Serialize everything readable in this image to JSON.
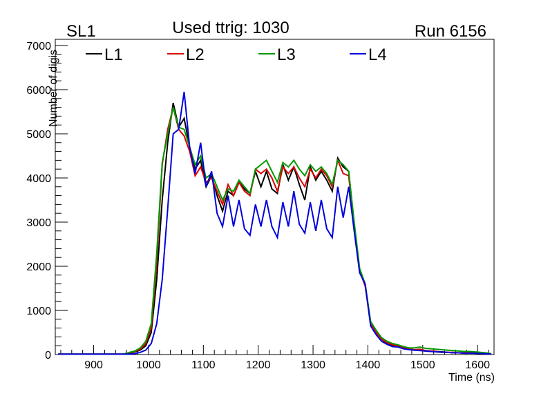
{
  "chart_data": {
    "type": "line",
    "title": "Used ttrig: 1030",
    "left_label": "SL1",
    "right_label": "Run 6156",
    "xlabel": "Time (ns)",
    "ylabel": "Number of digis",
    "xlim": [
      830,
      1630
    ],
    "ylim": [
      0,
      7140
    ],
    "xticks": [
      900,
      1000,
      1100,
      1200,
      1300,
      1400,
      1500,
      1600
    ],
    "yticks": [
      0,
      1000,
      2000,
      3000,
      4000,
      5000,
      6000,
      7000
    ],
    "legend_placement": "top",
    "x_start": 835,
    "x_step": 10,
    "series": [
      {
        "name": "L1",
        "color": "#000000",
        "values": [
          10,
          10,
          10,
          10,
          10,
          10,
          10,
          10,
          10,
          10,
          10,
          10,
          10,
          30,
          60,
          100,
          200,
          500,
          1700,
          3500,
          4800,
          5700,
          5150,
          5350,
          4700,
          4200,
          4400,
          3800,
          4050,
          3600,
          3250,
          3700,
          3600,
          3900,
          3750,
          3650,
          4150,
          3800,
          4150,
          3750,
          3650,
          4300,
          3950,
          4250,
          3850,
          3500,
          4250,
          3950,
          4150,
          3950,
          3700,
          4450,
          4250,
          4150,
          2900,
          1900,
          1600,
          700,
          500,
          350,
          250,
          200,
          200,
          150,
          120,
          100,
          100,
          80,
          70,
          60,
          50,
          50,
          40,
          40,
          30,
          40,
          30,
          30,
          20,
          10
        ]
      },
      {
        "name": "L2",
        "color": "#dd0000",
        "values": [
          10,
          10,
          10,
          10,
          10,
          10,
          10,
          10,
          10,
          10,
          10,
          10,
          10,
          40,
          70,
          120,
          250,
          600,
          2100,
          4300,
          5100,
          5600,
          5100,
          4950,
          4600,
          4050,
          4250,
          3900,
          4000,
          3700,
          3400,
          3850,
          3600,
          3900,
          3700,
          3600,
          4200,
          4100,
          4200,
          4000,
          3700,
          4250,
          4100,
          4250,
          4000,
          3800,
          4200,
          4000,
          4200,
          4050,
          3800,
          4400,
          4100,
          4050,
          2900,
          1900,
          1550,
          700,
          500,
          350,
          270,
          220,
          200,
          160,
          130,
          110,
          120,
          90,
          80,
          70,
          60,
          50,
          50,
          40,
          40,
          50,
          40,
          30,
          20,
          10
        ]
      },
      {
        "name": "L3",
        "color": "#009900",
        "values": [
          10,
          10,
          10,
          10,
          10,
          10,
          10,
          10,
          10,
          10,
          10,
          10,
          10,
          50,
          80,
          150,
          300,
          700,
          2300,
          4350,
          5000,
          5600,
          5150,
          5100,
          4700,
          4300,
          4500,
          4000,
          4100,
          3800,
          3500,
          3750,
          3700,
          3950,
          3800,
          3650,
          4200,
          4300,
          4400,
          4150,
          3900,
          4350,
          4250,
          4400,
          4200,
          4050,
          4300,
          4150,
          4250,
          4100,
          3850,
          4400,
          4300,
          4150,
          3000,
          1950,
          1600,
          750,
          550,
          380,
          300,
          250,
          220,
          180,
          150,
          150,
          170,
          140,
          130,
          120,
          110,
          100,
          90,
          80,
          70,
          70,
          60,
          50,
          40,
          20
        ]
      },
      {
        "name": "L4",
        "color": "#0000dd",
        "values": [
          10,
          10,
          10,
          10,
          10,
          10,
          10,
          10,
          10,
          10,
          10,
          10,
          10,
          10,
          20,
          50,
          100,
          250,
          700,
          1700,
          3300,
          5000,
          5100,
          5950,
          4700,
          4100,
          4800,
          3800,
          4150,
          3200,
          2900,
          3600,
          2900,
          3500,
          2850,
          2700,
          3400,
          2900,
          3500,
          2900,
          2650,
          3450,
          2900,
          3700,
          2950,
          2750,
          3450,
          2800,
          3500,
          2850,
          2650,
          3800,
          3100,
          3800,
          2800,
          1850,
          1600,
          650,
          450,
          300,
          230,
          180,
          170,
          130,
          110,
          100,
          90,
          80,
          70,
          60,
          60,
          50,
          40,
          40,
          30,
          30,
          30,
          20,
          20,
          10
        ]
      }
    ]
  }
}
